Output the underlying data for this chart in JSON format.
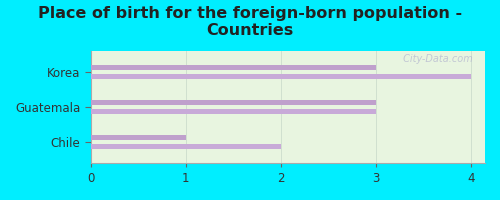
{
  "title": "Place of birth for the foreign-born population -\nCountries",
  "categories": [
    "Korea",
    "Guatemala",
    "Chile"
  ],
  "bars_upper": [
    4.0,
    3.0,
    2.0
  ],
  "bars_lower": [
    3.0,
    3.0,
    1.0
  ],
  "bar_color_upper": "#c8aad8",
  "bar_color_lower": "#bfa0cc",
  "xlim": [
    0,
    4.15
  ],
  "xticks": [
    0,
    1,
    2,
    3,
    4
  ],
  "xticklabels": [
    "0",
    "1",
    "2",
    "3",
    "4"
  ],
  "background_outer": "#00eeff",
  "background_inner_color": "#e8f5e0",
  "title_fontsize": 11.5,
  "label_fontsize": 8.5,
  "tick_fontsize": 8.5,
  "title_color": "#222222",
  "watermark": " City-Data.com",
  "watermark_icon": "●"
}
